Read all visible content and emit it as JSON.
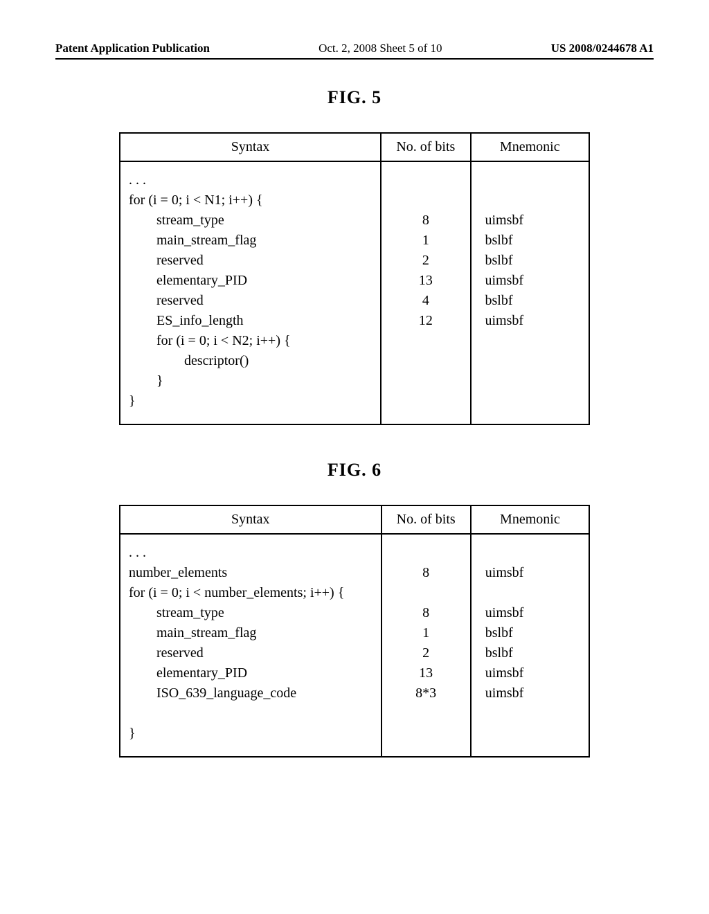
{
  "header": {
    "left": "Patent Application Publication",
    "center": "Oct. 2, 2008  Sheet 5 of 10",
    "right": "US 2008/0244678 A1"
  },
  "fig5": {
    "label": "FIG. 5",
    "columns": [
      "Syntax",
      "No. of bits",
      "Mnemonic"
    ],
    "rows": [
      {
        "syntax": ". . .",
        "bits": "",
        "mnem": ""
      },
      {
        "syntax": "for (i = 0; i < N1; i++) {",
        "bits": "",
        "mnem": ""
      },
      {
        "syntax": "        stream_type",
        "bits": "8",
        "mnem": "uimsbf"
      },
      {
        "syntax": "        main_stream_flag",
        "bits": "1",
        "mnem": "bslbf"
      },
      {
        "syntax": "        reserved",
        "bits": "2",
        "mnem": "bslbf"
      },
      {
        "syntax": "        elementary_PID",
        "bits": "13",
        "mnem": "uimsbf"
      },
      {
        "syntax": "        reserved",
        "bits": "4",
        "mnem": "bslbf"
      },
      {
        "syntax": "        ES_info_length",
        "bits": "12",
        "mnem": "uimsbf"
      },
      {
        "syntax": "        for (i = 0; i < N2; i++) {",
        "bits": "",
        "mnem": ""
      },
      {
        "syntax": "                descriptor()",
        "bits": "",
        "mnem": ""
      },
      {
        "syntax": "        }",
        "bits": "",
        "mnem": ""
      },
      {
        "syntax": "}",
        "bits": "",
        "mnem": ""
      }
    ]
  },
  "fig6": {
    "label": "FIG. 6",
    "columns": [
      "Syntax",
      "No. of bits",
      "Mnemonic"
    ],
    "rows": [
      {
        "syntax": ". . .",
        "bits": "",
        "mnem": ""
      },
      {
        "syntax": "number_elements",
        "bits": "8",
        "mnem": "uimsbf"
      },
      {
        "syntax": "for (i = 0; i < number_elements; i++) {",
        "bits": "",
        "mnem": ""
      },
      {
        "syntax": "        stream_type",
        "bits": "8",
        "mnem": "uimsbf"
      },
      {
        "syntax": "        main_stream_flag",
        "bits": "1",
        "mnem": "bslbf"
      },
      {
        "syntax": "        reserved",
        "bits": "2",
        "mnem": "bslbf"
      },
      {
        "syntax": "        elementary_PID",
        "bits": "13",
        "mnem": "uimsbf"
      },
      {
        "syntax": "        ISO_639_language_code",
        "bits": "8*3",
        "mnem": "uimsbf"
      },
      {
        "syntax": "",
        "bits": "",
        "mnem": ""
      },
      {
        "syntax": "}",
        "bits": "",
        "mnem": ""
      }
    ]
  },
  "colors": {
    "text": "#000000",
    "background": "#ffffff",
    "border": "#000000"
  }
}
